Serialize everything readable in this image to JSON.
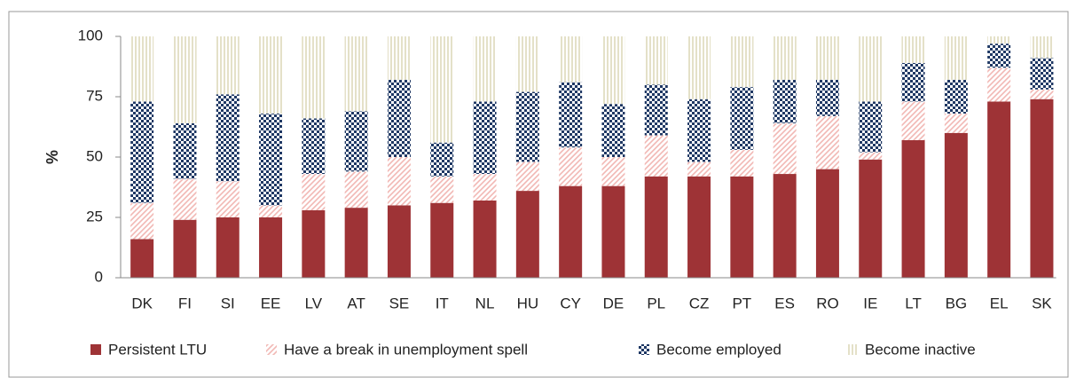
{
  "chart_data": {
    "type": "stacked_bar",
    "y_label": "%",
    "categories": [
      "DK",
      "FI",
      "SI",
      "EE",
      "LV",
      "AT",
      "SE",
      "IT",
      "NL",
      "HU",
      "CY",
      "DE",
      "PL",
      "CZ",
      "PT",
      "ES",
      "RO",
      "IE",
      "LT",
      "BG",
      "EL",
      "SK"
    ],
    "series": [
      {
        "name": "Persistent LTU",
        "color": "#9e3336",
        "pattern": "solid",
        "values": [
          16,
          24,
          25,
          25,
          28,
          29,
          30,
          31,
          32,
          36,
          38,
          38,
          42,
          42,
          42,
          43,
          45,
          49,
          57,
          60,
          73,
          74
        ]
      },
      {
        "name": "Have a break in unemployment spell",
        "color": "#f2b8b4",
        "pattern": "diagonal",
        "values": [
          15,
          17,
          15,
          5,
          15,
          15,
          20,
          11,
          11,
          12,
          16,
          12,
          17,
          6,
          11,
          21,
          22,
          3,
          16,
          8,
          14,
          4
        ]
      },
      {
        "name": "Become employed",
        "color": "#1f3864",
        "pattern": "checker",
        "values": [
          42,
          23,
          36,
          38,
          23,
          25,
          32,
          14,
          30,
          29,
          27,
          22,
          21,
          26,
          26,
          18,
          15,
          21,
          16,
          14,
          10,
          13
        ]
      },
      {
        "name": "Become inactive",
        "color": "#d9d4b0",
        "pattern": "vertical",
        "values": [
          27,
          36,
          24,
          32,
          34,
          31,
          18,
          44,
          27,
          23,
          19,
          28,
          20,
          26,
          21,
          18,
          18,
          27,
          11,
          18,
          3,
          9
        ]
      }
    ],
    "ylim": [
      0,
      100
    ],
    "yticks": [
      0,
      25,
      50,
      75,
      100
    ],
    "grid": false
  }
}
